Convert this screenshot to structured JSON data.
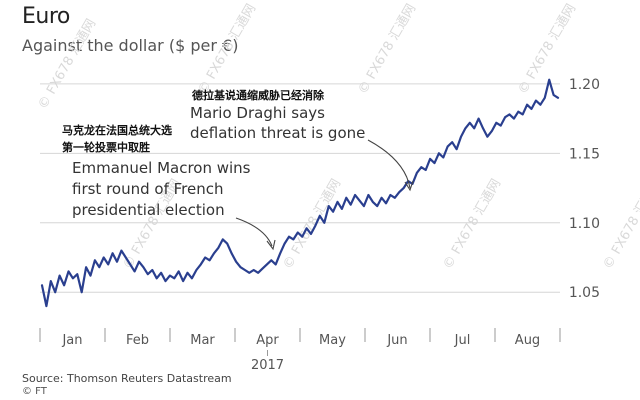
{
  "chart_data": {
    "type": "line",
    "title": "Euro",
    "subtitle": "Against the dollar ($ per €)",
    "x_ticks": [
      "Jan",
      "Feb",
      "Mar",
      "Apr",
      "May",
      "Jun",
      "Jul",
      "Aug"
    ],
    "year_label": "2017",
    "y_ticks": [
      1.05,
      1.1,
      1.15,
      1.2
    ],
    "ylim": [
      1.03,
      1.21
    ],
    "grid": true,
    "series": [
      {
        "color": "#2a3f8f",
        "values": [
          1.055,
          1.04,
          1.058,
          1.05,
          1.062,
          1.055,
          1.065,
          1.06,
          1.063,
          1.05,
          1.068,
          1.062,
          1.073,
          1.068,
          1.075,
          1.07,
          1.078,
          1.072,
          1.08,
          1.075,
          1.07,
          1.065,
          1.072,
          1.068,
          1.063,
          1.066,
          1.06,
          1.064,
          1.058,
          1.062,
          1.06,
          1.065,
          1.058,
          1.064,
          1.06,
          1.066,
          1.07,
          1.075,
          1.073,
          1.078,
          1.082,
          1.088,
          1.085,
          1.078,
          1.072,
          1.068,
          1.066,
          1.064,
          1.066,
          1.064,
          1.067,
          1.07,
          1.073,
          1.07,
          1.078,
          1.085,
          1.09,
          1.088,
          1.093,
          1.09,
          1.096,
          1.092,
          1.098,
          1.105,
          1.1,
          1.112,
          1.108,
          1.115,
          1.11,
          1.118,
          1.113,
          1.12,
          1.116,
          1.112,
          1.12,
          1.115,
          1.112,
          1.118,
          1.114,
          1.12,
          1.118,
          1.122,
          1.125,
          1.13,
          1.128,
          1.136,
          1.14,
          1.138,
          1.146,
          1.143,
          1.15,
          1.147,
          1.155,
          1.158,
          1.153,
          1.162,
          1.168,
          1.172,
          1.168,
          1.175,
          1.168,
          1.162,
          1.166,
          1.172,
          1.17,
          1.176,
          1.178,
          1.175,
          1.18,
          1.178,
          1.185,
          1.182,
          1.188,
          1.185,
          1.19,
          1.203,
          1.192,
          1.19
        ]
      }
    ],
    "annotations": [
      {
        "label_zh": "德拉基说通缩威胁已经消除",
        "label_en": "Mario Draghi says deflation threat is gone"
      },
      {
        "label_zh": "马克龙在法国总统大选第一轮投票中取胜",
        "label_en": "Emmanuel Macron wins first round of French presidential election"
      }
    ]
  },
  "watermark": "© FX678 汇通网",
  "source": "Source: Thomson Reuters Datastream",
  "credit": "© FT"
}
